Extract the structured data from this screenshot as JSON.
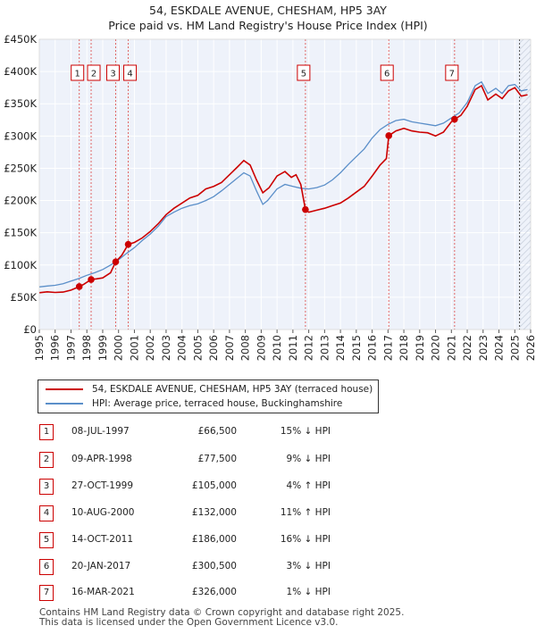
{
  "title": "54, ESKDALE AVENUE, CHESHAM, HP5 3AY",
  "subtitle": "Price paid vs. HM Land Registry's House Price Index (HPI)",
  "colors": {
    "property": "#cc0000",
    "hpi": "#5b8fc9",
    "band": "#e8eef8"
  },
  "chart_data": {
    "type": "line",
    "title": "54, ESKDALE AVENUE, CHESHAM, HP5 3AY",
    "xlim": [
      1995,
      2026
    ],
    "ylim": [
      0,
      450000
    ],
    "x_ticks": [
      "1995",
      "1996",
      "1997",
      "1998",
      "1999",
      "2000",
      "2001",
      "2002",
      "2003",
      "2004",
      "2005",
      "2006",
      "2007",
      "2008",
      "2009",
      "2010",
      "2011",
      "2012",
      "2013",
      "2014",
      "2015",
      "2016",
      "2017",
      "2018",
      "2019",
      "2020",
      "2021",
      "2022",
      "2023",
      "2024",
      "2025",
      "2026"
    ],
    "y_ticks": [
      {
        "value": 0,
        "label": "£0"
      },
      {
        "value": 50000,
        "label": "£50K"
      },
      {
        "value": 100000,
        "label": "£100K"
      },
      {
        "value": 150000,
        "label": "£150K"
      },
      {
        "value": 200000,
        "label": "£200K"
      },
      {
        "value": 250000,
        "label": "£250K"
      },
      {
        "value": 300000,
        "label": "£300K"
      },
      {
        "value": 350000,
        "label": "£350K"
      },
      {
        "value": 400000,
        "label": "£400K"
      },
      {
        "value": 450000,
        "label": "£450K"
      }
    ],
    "forecast_from": 2025.3,
    "series": [
      {
        "name": "54, ESKDALE AVENUE, CHESHAM, HP5 3AY (terraced house)",
        "points": [
          [
            1995.0,
            57000
          ],
          [
            1995.5,
            58500
          ],
          [
            1996.0,
            57500
          ],
          [
            1996.5,
            58000
          ],
          [
            1997.0,
            61000
          ],
          [
            1997.52,
            66500
          ],
          [
            1997.8,
            70000
          ],
          [
            1998.27,
            77500
          ],
          [
            1998.6,
            78500
          ],
          [
            1999.0,
            80000
          ],
          [
            1999.5,
            88000
          ],
          [
            1999.82,
            105000
          ],
          [
            2000.2,
            115000
          ],
          [
            2000.61,
            132000
          ],
          [
            2001.0,
            135000
          ],
          [
            2001.5,
            142000
          ],
          [
            2002.0,
            152000
          ],
          [
            2002.5,
            164000
          ],
          [
            2003.0,
            178000
          ],
          [
            2003.5,
            188000
          ],
          [
            2004.0,
            196000
          ],
          [
            2004.5,
            204000
          ],
          [
            2005.0,
            208000
          ],
          [
            2005.5,
            218000
          ],
          [
            2006.0,
            222000
          ],
          [
            2006.5,
            228000
          ],
          [
            2007.0,
            240000
          ],
          [
            2007.5,
            252000
          ],
          [
            2007.9,
            262000
          ],
          [
            2008.3,
            255000
          ],
          [
            2008.7,
            232000
          ],
          [
            2009.1,
            212000
          ],
          [
            2009.5,
            220000
          ],
          [
            2010.0,
            238000
          ],
          [
            2010.5,
            245000
          ],
          [
            2010.9,
            236000
          ],
          [
            2011.2,
            240000
          ],
          [
            2011.5,
            225000
          ],
          [
            2011.79,
            186000
          ],
          [
            2012.0,
            182000
          ],
          [
            2012.5,
            185000
          ],
          [
            2013.0,
            188000
          ],
          [
            2013.5,
            192000
          ],
          [
            2014.0,
            196000
          ],
          [
            2014.5,
            204000
          ],
          [
            2015.0,
            213000
          ],
          [
            2015.5,
            222000
          ],
          [
            2016.0,
            238000
          ],
          [
            2016.5,
            255000
          ],
          [
            2016.9,
            265000
          ],
          [
            2017.05,
            300500
          ],
          [
            2017.5,
            308000
          ],
          [
            2018.0,
            312000
          ],
          [
            2018.5,
            308000
          ],
          [
            2019.0,
            306000
          ],
          [
            2019.5,
            305000
          ],
          [
            2020.0,
            300000
          ],
          [
            2020.5,
            306000
          ],
          [
            2021.0,
            322000
          ],
          [
            2021.2,
            326000
          ],
          [
            2021.6,
            332000
          ],
          [
            2022.0,
            346000
          ],
          [
            2022.5,
            372000
          ],
          [
            2022.9,
            378000
          ],
          [
            2023.3,
            356000
          ],
          [
            2023.8,
            365000
          ],
          [
            2024.2,
            358000
          ],
          [
            2024.6,
            370000
          ],
          [
            2025.0,
            375000
          ],
          [
            2025.4,
            362000
          ],
          [
            2025.8,
            364000
          ]
        ]
      },
      {
        "name": "HPI: Average price, terraced house, Buckinghamshire",
        "points": [
          [
            1995.0,
            66000
          ],
          [
            1995.5,
            67500
          ],
          [
            1996.0,
            68500
          ],
          [
            1996.5,
            71000
          ],
          [
            1997.0,
            75000
          ],
          [
            1997.5,
            79000
          ],
          [
            1998.0,
            84000
          ],
          [
            1998.5,
            88000
          ],
          [
            1999.0,
            93000
          ],
          [
            1999.5,
            100000
          ],
          [
            2000.0,
            108000
          ],
          [
            2000.5,
            118000
          ],
          [
            2001.0,
            127000
          ],
          [
            2001.5,
            138000
          ],
          [
            2002.0,
            148000
          ],
          [
            2002.5,
            160000
          ],
          [
            2003.0,
            175000
          ],
          [
            2003.5,
            182000
          ],
          [
            2004.0,
            188000
          ],
          [
            2004.5,
            192000
          ],
          [
            2005.0,
            195000
          ],
          [
            2005.5,
            200000
          ],
          [
            2006.0,
            206000
          ],
          [
            2006.5,
            215000
          ],
          [
            2007.0,
            225000
          ],
          [
            2007.5,
            235000
          ],
          [
            2007.9,
            243000
          ],
          [
            2008.3,
            238000
          ],
          [
            2008.7,
            215000
          ],
          [
            2009.1,
            194000
          ],
          [
            2009.4,
            200000
          ],
          [
            2010.0,
            218000
          ],
          [
            2010.5,
            225000
          ],
          [
            2011.0,
            222000
          ],
          [
            2011.5,
            219000
          ],
          [
            2012.0,
            218000
          ],
          [
            2012.5,
            220000
          ],
          [
            2013.0,
            224000
          ],
          [
            2013.5,
            232000
          ],
          [
            2014.0,
            243000
          ],
          [
            2014.5,
            256000
          ],
          [
            2015.0,
            268000
          ],
          [
            2015.5,
            280000
          ],
          [
            2016.0,
            297000
          ],
          [
            2016.5,
            310000
          ],
          [
            2017.0,
            318000
          ],
          [
            2017.5,
            324000
          ],
          [
            2018.0,
            326000
          ],
          [
            2018.5,
            322000
          ],
          [
            2019.0,
            320000
          ],
          [
            2019.5,
            318000
          ],
          [
            2020.0,
            316000
          ],
          [
            2020.5,
            320000
          ],
          [
            2021.0,
            328000
          ],
          [
            2021.5,
            336000
          ],
          [
            2022.0,
            352000
          ],
          [
            2022.5,
            378000
          ],
          [
            2022.9,
            384000
          ],
          [
            2023.3,
            366000
          ],
          [
            2023.8,
            374000
          ],
          [
            2024.2,
            366000
          ],
          [
            2024.6,
            378000
          ],
          [
            2025.0,
            380000
          ],
          [
            2025.4,
            370000
          ],
          [
            2025.8,
            372000
          ]
        ]
      }
    ],
    "sale_markers": [
      {
        "label": "1",
        "x": 1997.52,
        "y": 66500
      },
      {
        "label": "2",
        "x": 1998.27,
        "y": 77500
      },
      {
        "label": "3",
        "x": 1999.82,
        "y": 105000
      },
      {
        "label": "4",
        "x": 2000.61,
        "y": 132000
      },
      {
        "label": "5",
        "x": 2011.79,
        "y": 186000
      },
      {
        "label": "6",
        "x": 2017.05,
        "y": 300500
      },
      {
        "label": "7",
        "x": 2021.2,
        "y": 326000
      }
    ]
  },
  "legend": {
    "property_label": "54, ESKDALE AVENUE, CHESHAM, HP5 3AY (terraced house)",
    "hpi_label": "HPI: Average price, terraced house, Buckinghamshire"
  },
  "sales": [
    {
      "num": "1",
      "date": "08-JUL-1997",
      "price": "£66,500",
      "hpi": "15% ↓ HPI"
    },
    {
      "num": "2",
      "date": "09-APR-1998",
      "price": "£77,500",
      "hpi": "9% ↓ HPI"
    },
    {
      "num": "3",
      "date": "27-OCT-1999",
      "price": "£105,000",
      "hpi": "4% ↑ HPI"
    },
    {
      "num": "4",
      "date": "10-AUG-2000",
      "price": "£132,000",
      "hpi": "11% ↑ HPI"
    },
    {
      "num": "5",
      "date": "14-OCT-2011",
      "price": "£186,000",
      "hpi": "16% ↓ HPI"
    },
    {
      "num": "6",
      "date": "20-JAN-2017",
      "price": "£300,500",
      "hpi": "3% ↓ HPI"
    },
    {
      "num": "7",
      "date": "16-MAR-2021",
      "price": "£326,000",
      "hpi": "1% ↓ HPI"
    }
  ],
  "footer": {
    "line1": "Contains HM Land Registry data © Crown copyright and database right 2025.",
    "line2": "This data is licensed under the Open Government Licence v3.0."
  }
}
